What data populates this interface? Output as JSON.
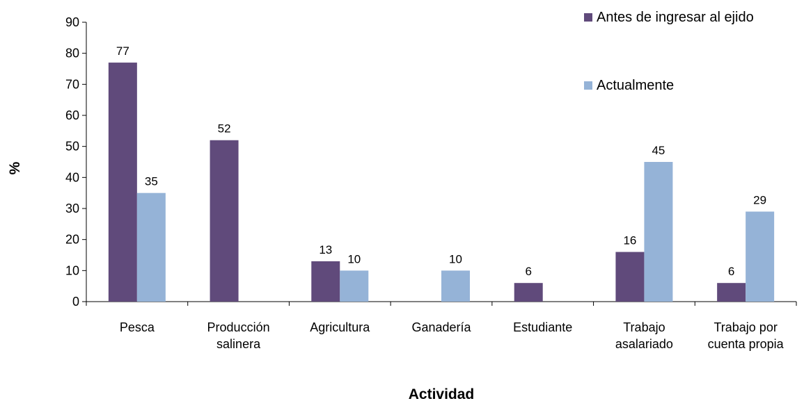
{
  "chart_data": {
    "type": "bar",
    "title": "",
    "xlabel": "Actividad",
    "ylabel": "%",
    "ylim": [
      0,
      90
    ],
    "yticks": [
      0,
      10,
      20,
      30,
      40,
      50,
      60,
      70,
      80,
      90
    ],
    "grid": false,
    "legend_position": "top-right",
    "categories": [
      [
        "Pesca"
      ],
      [
        "Producción",
        "salinera"
      ],
      [
        "Agricultura"
      ],
      [
        "Ganadería"
      ],
      [
        "Estudiante"
      ],
      [
        "Trabajo",
        "asalariado"
      ],
      [
        "Trabajo por",
        "cuenta propia"
      ]
    ],
    "series": [
      {
        "name": "Antes de ingresar al ejido",
        "color": "#604A7B",
        "values": [
          77,
          52,
          13,
          null,
          6,
          16,
          6
        ]
      },
      {
        "name": "Actualmente",
        "color": "#95B3D7",
        "values": [
          35,
          null,
          10,
          10,
          null,
          45,
          29
        ]
      }
    ]
  }
}
